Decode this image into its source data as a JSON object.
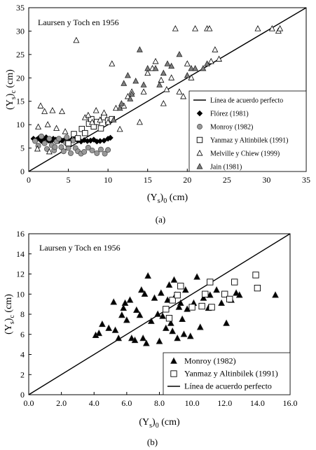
{
  "chart_data": [
    {
      "type": "scatter",
      "caption": "(a)",
      "annotation": "Laursen y Toch en 1956",
      "xlabel": "(Ys)0 (cm)",
      "ylabel": "(Ys)c (cm)",
      "xlim": [
        0,
        35
      ],
      "ylim": [
        0,
        35
      ],
      "xticks": [
        "0",
        "5",
        "10",
        "15",
        "20",
        "25",
        "30",
        "35"
      ],
      "yticks": [
        "0",
        "5",
        "10",
        "15",
        "20",
        "25",
        "30",
        "35"
      ],
      "grid": false,
      "legend_position": "lower-right",
      "reference_line": {
        "name": "Línea de acuerdo perfecto",
        "points": [
          [
            0,
            0
          ],
          [
            35,
            35
          ]
        ]
      },
      "series": [
        {
          "name": "Flórez (1981)",
          "marker": "diamond-filled",
          "color": "#000000",
          "points": [
            [
              0.6,
              7
            ],
            [
              1,
              6.8
            ],
            [
              1.3,
              7.2
            ],
            [
              1.6,
              6.5
            ],
            [
              1.9,
              6.9
            ],
            [
              2.2,
              7.3
            ],
            [
              2.5,
              6.6
            ],
            [
              2.8,
              6.4
            ],
            [
              3.1,
              7
            ],
            [
              3.4,
              6.8
            ],
            [
              3.8,
              6.5
            ],
            [
              4.2,
              6.6
            ],
            [
              4.6,
              6.9
            ],
            [
              5,
              6.5
            ],
            [
              5.4,
              6.8
            ],
            [
              5.8,
              7
            ],
            [
              6.2,
              6.6
            ],
            [
              6.6,
              6.4
            ],
            [
              7,
              6.7
            ],
            [
              7.4,
              6.5
            ],
            [
              7.8,
              6.6
            ],
            [
              8.2,
              6.8
            ],
            [
              8.6,
              6.4
            ],
            [
              9,
              6.5
            ],
            [
              9.5,
              6.6
            ],
            [
              10,
              7
            ],
            [
              10.3,
              7.2
            ]
          ]
        },
        {
          "name": "Monroy (1982)",
          "marker": "circle-filled",
          "color": "#999999",
          "points": [
            [
              0.8,
              6.5
            ],
            [
              1.2,
              5.5
            ],
            [
              1.6,
              7.5
            ],
            [
              2,
              6
            ],
            [
              2.3,
              4.8
            ],
            [
              2.6,
              7
            ],
            [
              2.9,
              5.6
            ],
            [
              3.2,
              4.5
            ],
            [
              3.5,
              6.4
            ],
            [
              3.8,
              7
            ],
            [
              4.1,
              5.2
            ],
            [
              4.4,
              4.3
            ],
            [
              4.7,
              6.1
            ],
            [
              5,
              5
            ],
            [
              5.3,
              3.9
            ],
            [
              5.6,
              6.6
            ],
            [
              5.9,
              5
            ],
            [
              6.2,
              4.3
            ],
            [
              6.6,
              3.8
            ],
            [
              7,
              4.2
            ],
            [
              7.5,
              5.1
            ],
            [
              8,
              4.5
            ],
            [
              8.6,
              3.9
            ],
            [
              9.1,
              4.7
            ],
            [
              9.6,
              3.8
            ],
            [
              10,
              4.6
            ],
            [
              4.8,
              7.3
            ],
            [
              3.3,
              5.2
            ]
          ]
        },
        {
          "name": "Yanmaz y Altinbilek (1991)",
          "marker": "square-open",
          "color": "#000000",
          "points": [
            [
              5,
              6
            ],
            [
              5.7,
              8
            ],
            [
              6.2,
              7.1
            ],
            [
              6.7,
              9.1
            ],
            [
              7.1,
              8.2
            ],
            [
              7.6,
              10.2
            ],
            [
              7.9,
              11.2
            ],
            [
              8.2,
              9.6
            ],
            [
              8.6,
              10.6
            ],
            [
              9.1,
              9.2
            ],
            [
              9.5,
              11.6
            ],
            [
              10,
              10.9
            ],
            [
              10.5,
              11.2
            ]
          ]
        },
        {
          "name": "Melville y Chiew (1999)",
          "marker": "triangle-open",
          "color": "#000000",
          "points": [
            [
              1.5,
              14
            ],
            [
              2,
              12.8
            ],
            [
              3,
              13
            ],
            [
              4.2,
              12.8
            ],
            [
              1.2,
              9.5
            ],
            [
              2.4,
              10
            ],
            [
              3.5,
              9.2
            ],
            [
              4.6,
              8.5
            ],
            [
              1.1,
              4.8
            ],
            [
              2.6,
              4.2
            ],
            [
              6,
              28
            ],
            [
              7.1,
              11.5
            ],
            [
              7.5,
              12
            ],
            [
              8,
              10.5
            ],
            [
              8.5,
              13
            ],
            [
              9,
              11
            ],
            [
              9.5,
              12.5
            ],
            [
              10,
              10.5
            ],
            [
              10.5,
              23
            ],
            [
              11,
              13.5
            ],
            [
              11.5,
              9
            ],
            [
              12,
              14
            ],
            [
              12.5,
              16
            ],
            [
              13,
              17
            ],
            [
              14,
              10.5
            ],
            [
              14.5,
              17
            ],
            [
              15,
              21
            ],
            [
              16,
              23.5
            ],
            [
              17,
              14.5
            ],
            [
              17.4,
              17.5
            ],
            [
              18,
              20
            ],
            [
              18.5,
              30.5
            ],
            [
              19,
              17
            ],
            [
              19.5,
              16
            ],
            [
              20,
              23
            ],
            [
              20.5,
              20
            ],
            [
              21,
              30.5
            ],
            [
              22,
              16
            ],
            [
              22.5,
              30.5
            ],
            [
              22.8,
              30.5
            ],
            [
              23,
              23.5
            ],
            [
              23.5,
              26
            ],
            [
              24,
              24
            ],
            [
              28.9,
              30.5
            ],
            [
              30.7,
              30.5
            ],
            [
              31.5,
              30
            ],
            [
              31.7,
              30.5
            ],
            [
              15.6,
              22
            ],
            [
              16.7,
              19.5
            ]
          ]
        },
        {
          "name": "Jain (1981)",
          "marker": "triangle-filled",
          "color": "#808080",
          "points": [
            [
              10.7,
              11
            ],
            [
              11.5,
              13.5
            ],
            [
              12,
              18.8
            ],
            [
              12.5,
              20.5
            ],
            [
              13,
              16.5
            ],
            [
              13.5,
              19.3
            ],
            [
              14,
              26
            ],
            [
              15,
              22
            ],
            [
              16,
              22
            ],
            [
              17,
              21
            ],
            [
              18,
              22.5
            ],
            [
              17.5,
              23
            ],
            [
              19,
              25
            ],
            [
              20,
              20.5
            ],
            [
              20.5,
              22
            ],
            [
              21,
              22
            ],
            [
              22,
              22
            ],
            [
              22.5,
              23
            ],
            [
              12.8,
              15.5
            ],
            [
              14.5,
              18.5
            ],
            [
              16.5,
              18.5
            ],
            [
              11.7,
              14.5
            ]
          ]
        }
      ]
    },
    {
      "type": "scatter",
      "caption": "(b)",
      "annotation": "Laursen y Toch en 1956",
      "xlabel": "(Ys)0 (cm)",
      "ylabel": "(Ys)c (cm)",
      "xlim": [
        0,
        16
      ],
      "ylim": [
        0,
        16
      ],
      "xticks": [
        "0.0",
        "2.0",
        "4.0",
        "6.0",
        "8.0",
        "10.0",
        "12.0",
        "14.0",
        "16.0"
      ],
      "yticks": [
        "0",
        "2",
        "4",
        "6",
        "8",
        "10",
        "12",
        "14",
        "16"
      ],
      "grid": false,
      "legend_position": "lower-right",
      "reference_line": {
        "name": "Línea de acuerdo perfecto",
        "points": [
          [
            0,
            0
          ],
          [
            16,
            16
          ]
        ]
      },
      "series": [
        {
          "name": "Monroy (1982)",
          "marker": "triangle-filled",
          "color": "#000000",
          "points": [
            [
              4.1,
              5.9
            ],
            [
              4.3,
              6.1
            ],
            [
              4.5,
              7
            ],
            [
              4.9,
              6.6
            ],
            [
              5.2,
              9.2
            ],
            [
              5.3,
              6.4
            ],
            [
              5.5,
              5.6
            ],
            [
              5.7,
              7.9
            ],
            [
              5.8,
              8.6
            ],
            [
              5.9,
              9.1
            ],
            [
              6,
              7.4
            ],
            [
              6.2,
              9.4
            ],
            [
              6.3,
              5.6
            ],
            [
              6.5,
              5.4
            ],
            [
              6.6,
              8.4
            ],
            [
              6.8,
              7.9
            ],
            [
              6.9,
              10.4
            ],
            [
              7,
              5.6
            ],
            [
              7.2,
              5.1
            ],
            [
              7.3,
              11.8
            ],
            [
              7.5,
              7.3
            ],
            [
              7.7,
              9.6
            ],
            [
              7.9,
              8
            ],
            [
              8,
              5.3
            ],
            [
              8.1,
              10.1
            ],
            [
              8.2,
              7.8
            ],
            [
              8.4,
              6.6
            ],
            [
              8.5,
              9.4
            ],
            [
              8.6,
              10.9
            ],
            [
              8.7,
              7.1
            ],
            [
              8.8,
              6.3
            ],
            [
              9,
              9.9
            ],
            [
              9.1,
              5.6
            ],
            [
              9.2,
              8.7
            ],
            [
              9.3,
              9.1
            ],
            [
              9.4,
              7.5
            ],
            [
              9.5,
              6
            ],
            [
              9.6,
              10.4
            ],
            [
              9.7,
              8.5
            ],
            [
              9.9,
              5.8
            ],
            [
              10.1,
              9.1
            ],
            [
              10.3,
              11.7
            ],
            [
              10.5,
              6.7
            ],
            [
              10.7,
              9.6
            ],
            [
              11,
              8.6
            ],
            [
              11.1,
              9.9
            ],
            [
              11.5,
              10.4
            ],
            [
              11.8,
              9.1
            ],
            [
              12.1,
              7.1
            ],
            [
              12.4,
              9.4
            ],
            [
              12.7,
              10.1
            ],
            [
              12.9,
              9.9
            ],
            [
              15.1,
              9.9
            ],
            [
              7.1,
              10
            ],
            [
              8.9,
              11.4
            ]
          ]
        },
        {
          "name": "Yanmaz y Altinbilek (1991)",
          "marker": "square-open",
          "color": "#000000",
          "points": [
            [
              8.4,
              8.5
            ],
            [
              8.6,
              7.6
            ],
            [
              8.8,
              9.4
            ],
            [
              9.1,
              9.9
            ],
            [
              9.3,
              10.8
            ],
            [
              10,
              8.7
            ],
            [
              10.6,
              8.8
            ],
            [
              10.8,
              10
            ],
            [
              11.1,
              11.2
            ],
            [
              11.2,
              8.7
            ],
            [
              12,
              10
            ],
            [
              12.3,
              9.5
            ],
            [
              12.6,
              11.2
            ],
            [
              13.9,
              11.9
            ],
            [
              14,
              10.6
            ]
          ]
        }
      ]
    }
  ]
}
